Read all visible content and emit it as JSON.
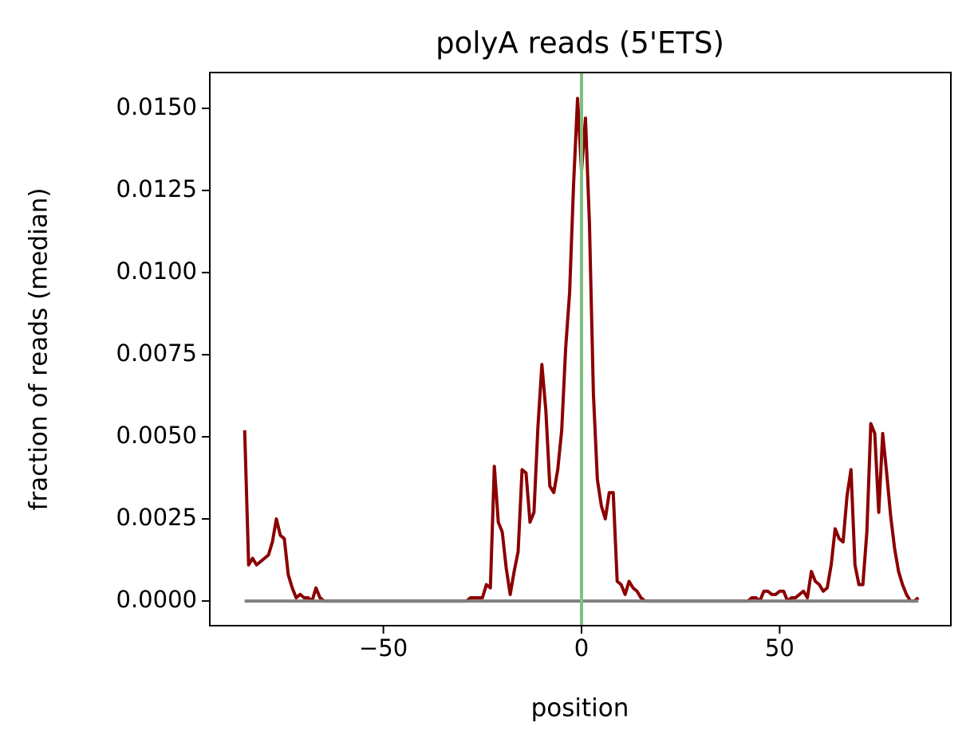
{
  "chart_data": {
    "type": "line",
    "title": "polyA reads (5'ETS)",
    "x_label": "position",
    "y_label": "fraction of reads (median)",
    "xlim": [
      -93.8,
      93.2
    ],
    "ylim": [
      -0.00075,
      0.01609
    ],
    "xticks": [
      {
        "value": -50,
        "label": "−50"
      },
      0,
      50
    ],
    "yticks": [
      {
        "value": 0,
        "label": "0.0000"
      },
      {
        "value": 0.0025,
        "label": "0.0025"
      },
      {
        "value": 0.005,
        "label": "0.0050"
      },
      {
        "value": 0.0075,
        "label": "0.0075"
      },
      {
        "value": 0.01,
        "label": "0.0100"
      },
      {
        "value": 0.0125,
        "label": "0.0125"
      },
      {
        "value": 0.015,
        "label": "0.0150"
      }
    ],
    "series": [
      {
        "color": "#8b0000",
        "x": [
          -85,
          -84,
          -83,
          -82,
          -81,
          -80,
          -79,
          -78,
          -77,
          -76,
          -75,
          -74,
          -73,
          -72,
          -71,
          -70,
          -69,
          -68,
          -67,
          -66,
          -65,
          -64,
          -63,
          -62,
          -61,
          -60,
          -59,
          -58,
          -57,
          -56,
          -55,
          -54,
          -53,
          -52,
          -51,
          -50,
          -49,
          -48,
          -47,
          -46,
          -45,
          -44,
          -43,
          -42,
          -41,
          -40,
          -39,
          -38,
          -37,
          -36,
          -35,
          -34,
          -33,
          -32,
          -31,
          -30,
          -29,
          -28,
          -27,
          -26,
          -25,
          -24,
          -23,
          -22,
          -21,
          -20,
          -19,
          -18,
          -17,
          -16,
          -15,
          -14,
          -13,
          -12,
          -11,
          -10,
          -9,
          -8,
          -7,
          -6,
          -5,
          -4,
          -3,
          -2,
          -1,
          0,
          1,
          2,
          3,
          4,
          5,
          6,
          7,
          8,
          9,
          10,
          11,
          12,
          13,
          14,
          15,
          16,
          17,
          18,
          19,
          20,
          21,
          22,
          23,
          24,
          25,
          26,
          27,
          28,
          29,
          30,
          31,
          32,
          33,
          34,
          35,
          36,
          37,
          38,
          39,
          40,
          41,
          42,
          43,
          44,
          45,
          46,
          47,
          48,
          49,
          50,
          51,
          52,
          53,
          54,
          55,
          56,
          57,
          58,
          59,
          60,
          61,
          62,
          63,
          64,
          65,
          66,
          67,
          68,
          69,
          70,
          71,
          72,
          73,
          74,
          75,
          76,
          77,
          78,
          79,
          80,
          81,
          82,
          83,
          84,
          85
        ],
        "values": [
          0.0052,
          0.0011,
          0.0013,
          0.0011,
          0.0012,
          0.0013,
          0.0014,
          0.0018,
          0.0025,
          0.002,
          0.0019,
          0.0008,
          0.0004,
          0.0001,
          0.0002,
          0.0001,
          0.0001,
          0,
          0.0004,
          0.0001,
          0,
          0,
          0,
          0,
          0,
          0,
          0,
          0,
          0,
          0,
          0,
          0,
          0,
          0,
          0,
          0,
          0,
          0,
          0,
          0,
          0,
          0,
          0,
          0,
          0,
          0,
          0,
          0,
          0,
          0,
          0,
          0,
          0,
          0,
          0,
          0,
          0,
          0.0001,
          0.0001,
          0.0001,
          0.0001,
          0.0005,
          0.0004,
          0.0041,
          0.0024,
          0.0021,
          0.001,
          0.0002,
          0.0009,
          0.0015,
          0.004,
          0.0039,
          0.0024,
          0.0027,
          0.0053,
          0.0072,
          0.0058,
          0.0035,
          0.0033,
          0.004,
          0.0052,
          0.0077,
          0.0094,
          0.0127,
          0.0153,
          0.0131,
          0.0147,
          0.0115,
          0.0063,
          0.0037,
          0.0029,
          0.0025,
          0.0033,
          0.0033,
          0.0006,
          0.0005,
          0.0002,
          0.0006,
          0.0004,
          0.0003,
          0.0001,
          0,
          0,
          0,
          0,
          0,
          0,
          0,
          0,
          0,
          0,
          0,
          0,
          0,
          0,
          0,
          0,
          0,
          0,
          0,
          0,
          0,
          0,
          0,
          0,
          0,
          0,
          0,
          0.0001,
          0.0001,
          0,
          0.0003,
          0.0003,
          0.0002,
          0.0002,
          0.0003,
          0.0003,
          0,
          0.0001,
          0.0001,
          0.0002,
          0.0003,
          0.0001,
          0.0009,
          0.0006,
          0.0005,
          0.0003,
          0.0004,
          0.0011,
          0.0022,
          0.0019,
          0.0018,
          0.0032,
          0.004,
          0.0011,
          0.0005,
          0.0005,
          0.0021,
          0.0054,
          0.0051,
          0.0027,
          0.0051,
          0.0039,
          0.0026,
          0.0016,
          0.0009,
          0.0005,
          0.0002,
          0,
          0,
          0.0001
        ]
      },
      {
        "color": "#808080",
        "x": [
          -85,
          85
        ],
        "values": [
          0,
          0
        ]
      }
    ],
    "vlines": [
      {
        "x": 0,
        "color": "#7fbf7f"
      }
    ]
  }
}
